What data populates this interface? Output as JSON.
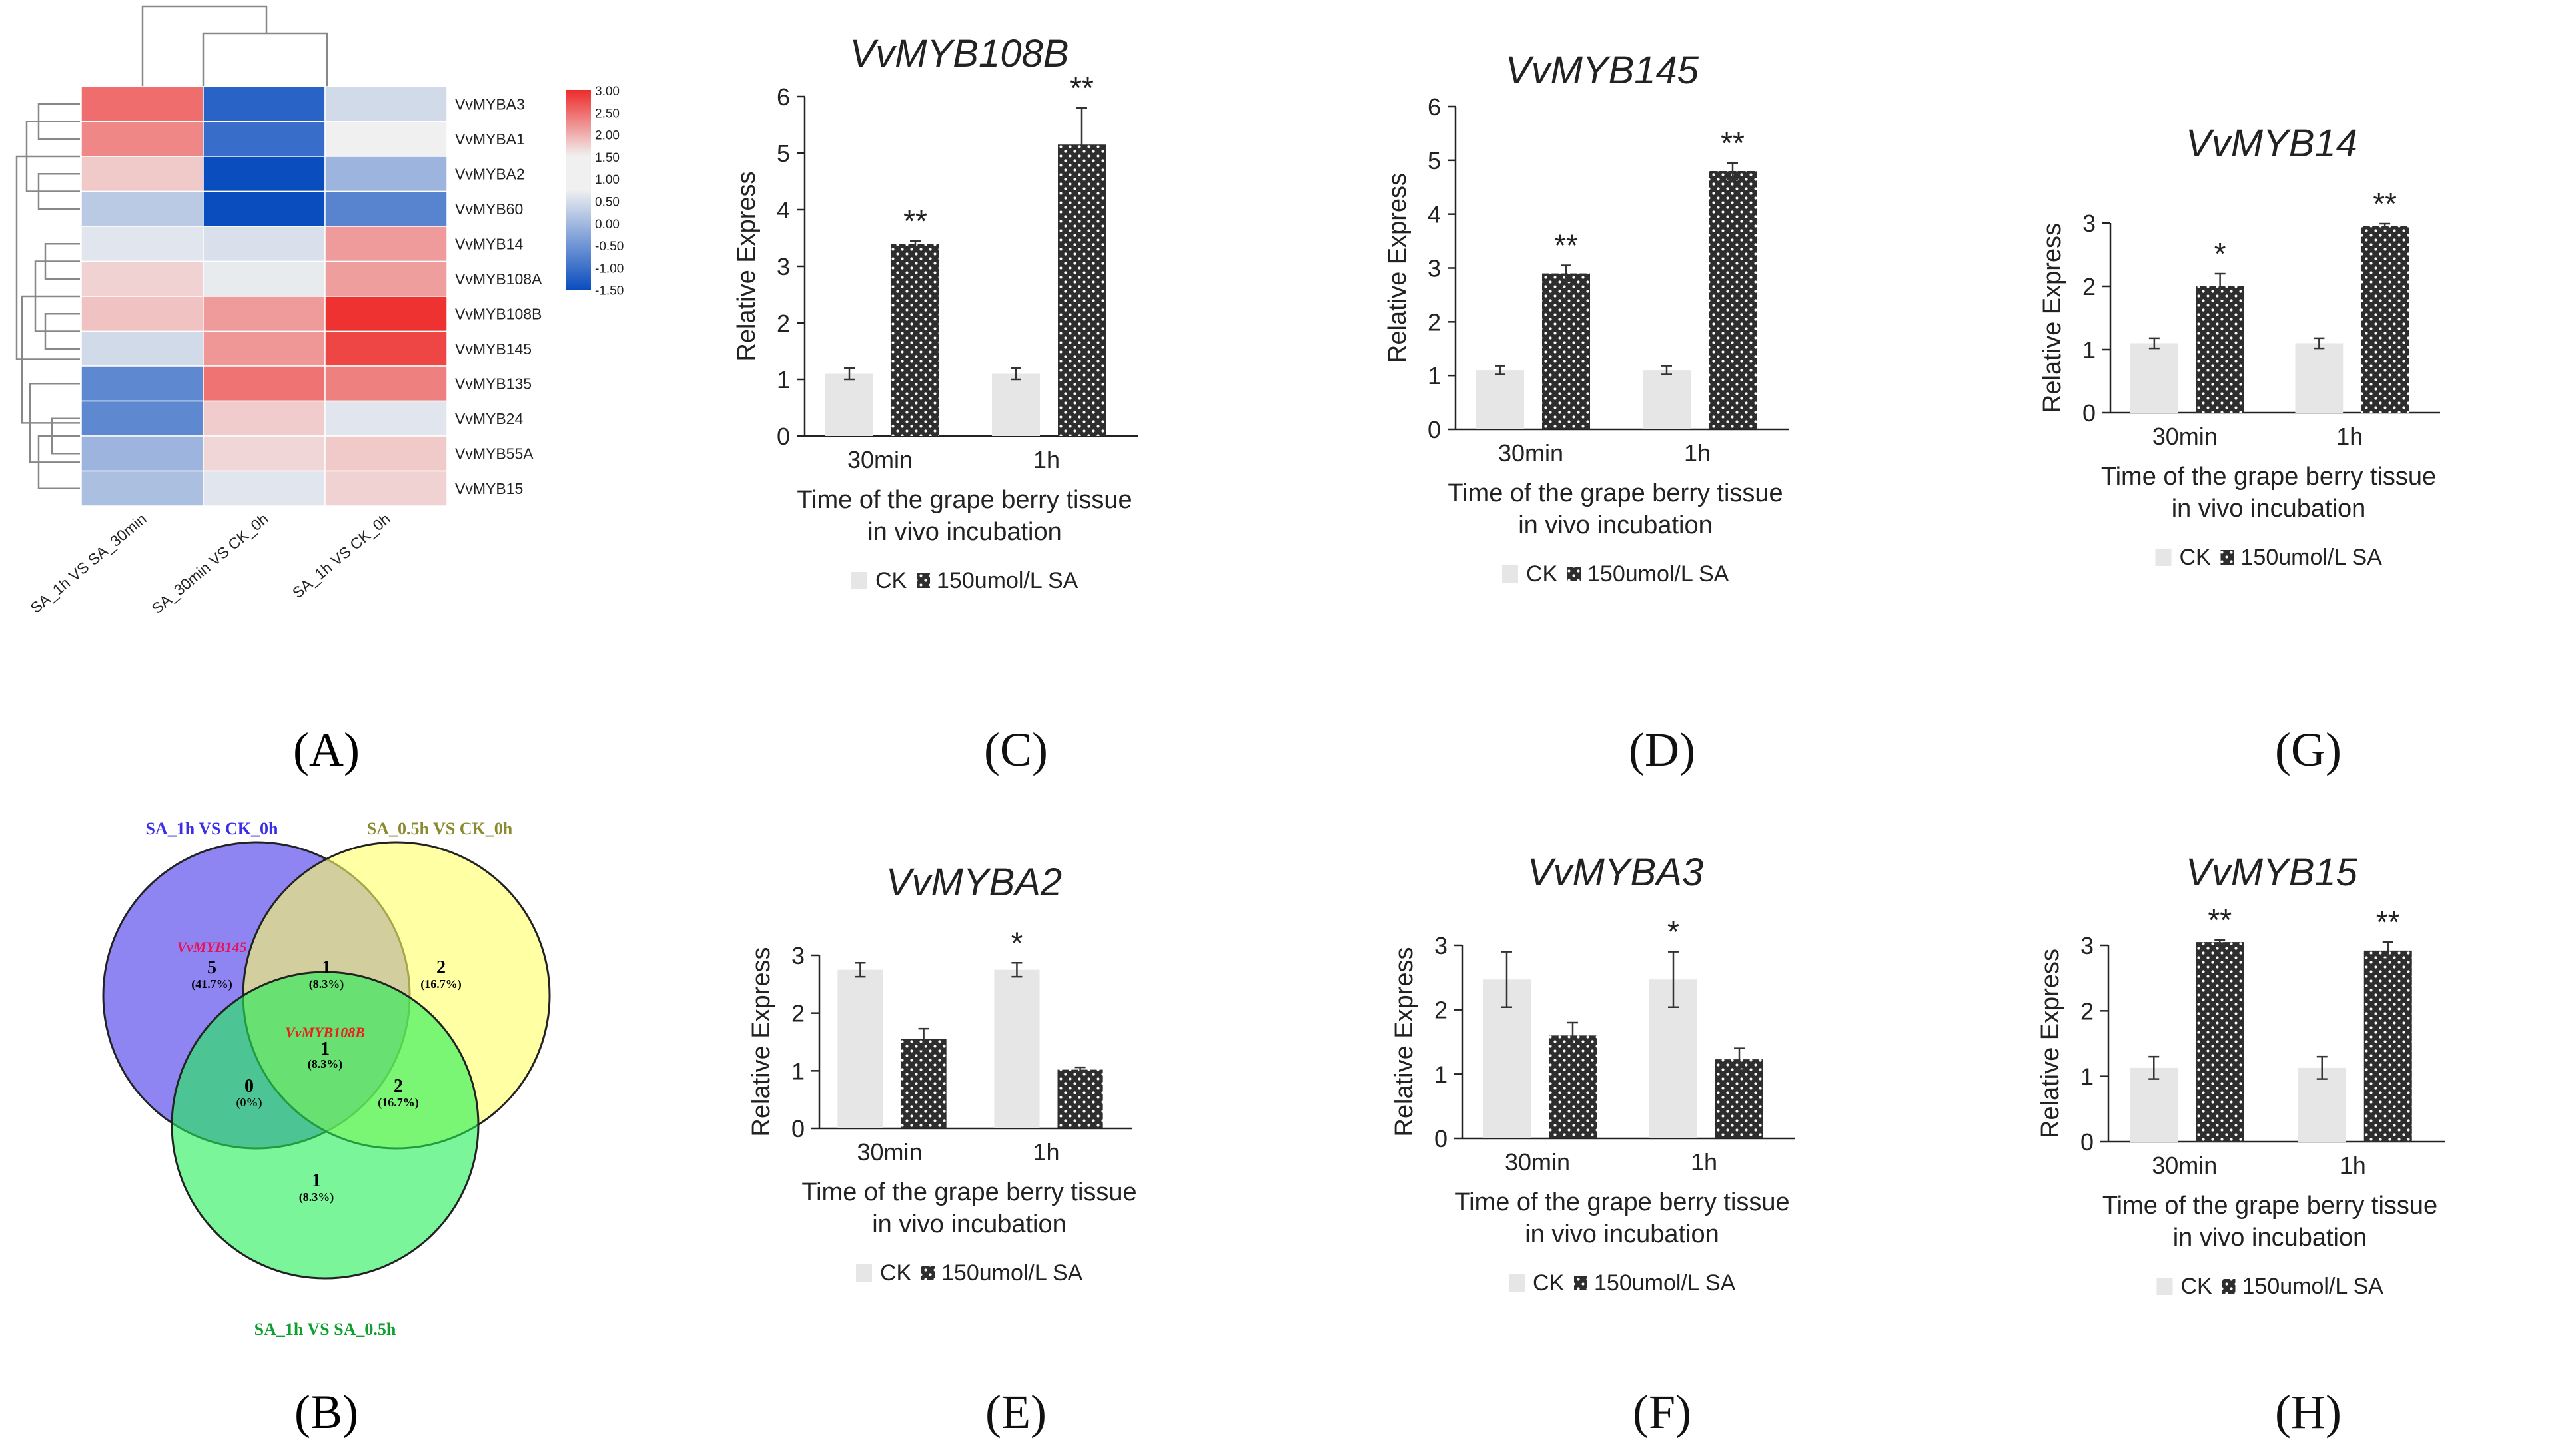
{
  "chart_data": [
    {
      "id": "A",
      "type": "heatmap",
      "panel_label": "(A)",
      "rows": [
        "VvMYBA3",
        "VvMYBA1",
        "VvMYBA2",
        "VvMYB60",
        "VvMYB14",
        "VvMYB108A",
        "VvMYB108B",
        "VvMYB145",
        "VvMYB135",
        "VvMYB24",
        "VvMYB55A",
        "VvMYB15"
      ],
      "columns": [
        "SA_1h VS SA_30min",
        "SA_30min VS CK_0h",
        "SA_1h VS CK_0h"
      ],
      "values": [
        [
          2.0,
          -1.3,
          -0.2
        ],
        [
          1.6,
          -1.2,
          0.0
        ],
        [
          0.6,
          -1.5,
          -0.55
        ],
        [
          -0.35,
          -1.5,
          -1.0
        ],
        [
          -0.1,
          -0.15,
          1.3
        ],
        [
          0.45,
          -0.05,
          1.25
        ],
        [
          0.7,
          1.3,
          2.9
        ],
        [
          -0.2,
          1.35,
          2.6
        ],
        [
          -0.95,
          1.9,
          1.7
        ],
        [
          -0.95,
          0.55,
          -0.1
        ],
        [
          -0.55,
          0.4,
          0.6
        ],
        [
          -0.45,
          -0.1,
          0.45
        ]
      ],
      "scale": {
        "min": -1.5,
        "max": 3.0,
        "ticks": [
          "3.00",
          "2.50",
          "2.00",
          "1.50",
          "1.00",
          "0.50",
          "0.00",
          "-0.50",
          "-1.00",
          "-1.50"
        ],
        "low_color": "#0a4dbf",
        "mid_color": "#f0f0f0",
        "high_color": "#ee2b2b"
      }
    },
    {
      "id": "B",
      "type": "venn",
      "panel_label": "(B)",
      "sets": [
        {
          "name": "SA_1h VS CK_0h",
          "color": "#7b70f0",
          "label_color": "#3b2ee8"
        },
        {
          "name": "SA_0.5h VS CK_0h",
          "color": "#ffff66",
          "label_color": "#8a8a30"
        },
        {
          "name": "SA_1h VS SA_0.5h",
          "color": "#22ee55",
          "label_color": "#10a030"
        }
      ],
      "regions": [
        {
          "region": "only_1",
          "count": "5",
          "pct": "(41.7%)",
          "gene": "VvMYB145"
        },
        {
          "region": "1_2",
          "count": "1",
          "pct": "(8.3%)"
        },
        {
          "region": "only_2",
          "count": "2",
          "pct": "(16.7%)"
        },
        {
          "region": "1_2_3",
          "count": "1",
          "pct": "(8.3%)",
          "gene": "VvMYB108B"
        },
        {
          "region": "1_3",
          "count": "0",
          "pct": "(0%)"
        },
        {
          "region": "2_3",
          "count": "2",
          "pct": "(16.7%)"
        },
        {
          "region": "only_3",
          "count": "1",
          "pct": "(8.3%)"
        }
      ]
    },
    {
      "id": "C",
      "type": "bar",
      "panel_label": "(C)",
      "title": "VvMYB108B",
      "categories": [
        "30min",
        "1h"
      ],
      "series": [
        {
          "name": "CK",
          "values": [
            1.1,
            1.1
          ],
          "errors": [
            0.1,
            0.1
          ]
        },
        {
          "name": "150umol/L SA",
          "values": [
            3.4,
            5.15
          ],
          "errors": [
            0.05,
            0.65
          ]
        }
      ],
      "significance": [
        "**",
        "**"
      ],
      "ylim": [
        0,
        6
      ],
      "yticks": [
        0,
        1,
        2,
        3,
        4,
        5,
        6
      ],
      "ylabel": "Relative Express",
      "xlabel": [
        "Time of the grape berry tissue",
        "in vivo incubation"
      ],
      "legend": [
        "CK",
        "150umol/L SA"
      ]
    },
    {
      "id": "D",
      "type": "bar",
      "panel_label": "(D)",
      "title": "VvMYB145",
      "categories": [
        "30min",
        "1h"
      ],
      "series": [
        {
          "name": "CK",
          "values": [
            1.1,
            1.1
          ],
          "errors": [
            0.08,
            0.08
          ]
        },
        {
          "name": "150umol/L SA",
          "values": [
            2.9,
            4.8
          ],
          "errors": [
            0.15,
            0.15
          ]
        }
      ],
      "significance": [
        "**",
        "**"
      ],
      "ylim": [
        0,
        6
      ],
      "yticks": [
        0,
        1,
        2,
        3,
        4,
        5,
        6
      ],
      "ylabel": "Relative Express",
      "xlabel": [
        "Time of the grape berry tissue",
        "in vivo incubation"
      ],
      "legend": [
        "CK",
        "150umol/L SA"
      ]
    },
    {
      "id": "G",
      "type": "bar",
      "panel_label": "(G)",
      "title": "VvMYB14",
      "categories": [
        "30min",
        "1h"
      ],
      "series": [
        {
          "name": "CK",
          "values": [
            1.1,
            1.1
          ],
          "errors": [
            0.08,
            0.08
          ]
        },
        {
          "name": "150umol/L SA",
          "values": [
            2.0,
            2.95
          ],
          "errors": [
            0.2,
            0.04
          ]
        }
      ],
      "significance": [
        "*",
        "**"
      ],
      "ylim": [
        0,
        3
      ],
      "yticks": [
        0,
        1,
        2,
        3
      ],
      "ylabel": "Relative Express",
      "xlabel": [
        "Time of the grape berry tissue",
        "in vivo incubation"
      ],
      "legend": [
        "CK",
        "150umol/L SA"
      ]
    },
    {
      "id": "E",
      "type": "bar",
      "panel_label": "(E)",
      "title": "VvMYBA2",
      "categories": [
        "30min",
        "1h"
      ],
      "series": [
        {
          "name": "CK",
          "values": [
            2.75,
            2.75
          ],
          "errors": [
            0.12,
            0.12
          ]
        },
        {
          "name": "150umol/L SA",
          "values": [
            1.55,
            1.02
          ],
          "errors": [
            0.18,
            0.04
          ]
        }
      ],
      "significance": [
        "",
        "*"
      ],
      "significance_series": "CK",
      "ylim": [
        0,
        3
      ],
      "yticks": [
        0,
        1,
        2,
        3
      ],
      "ylabel": "Relative Express",
      "xlabel": [
        "Time of the grape berry tissue",
        "in vivo incubation"
      ],
      "legend": [
        "CK",
        "150umol/L SA"
      ]
    },
    {
      "id": "F",
      "type": "bar",
      "panel_label": "(F)",
      "title": "VvMYBA3",
      "categories": [
        "30min",
        "1h"
      ],
      "series": [
        {
          "name": "CK",
          "values": [
            2.47,
            2.47
          ],
          "errors": [
            0.43,
            0.43
          ]
        },
        {
          "name": "150umol/L SA",
          "values": [
            1.6,
            1.23
          ],
          "errors": [
            0.2,
            0.17
          ]
        }
      ],
      "significance": [
        "",
        "*"
      ],
      "significance_series": "CK",
      "ylim": [
        0,
        3
      ],
      "yticks": [
        0,
        1,
        2,
        3
      ],
      "ylabel": "Relative Express",
      "xlabel": [
        "Time of the grape berry tissue",
        "in vivo incubation"
      ],
      "legend": [
        "CK",
        "150umol/L SA"
      ]
    },
    {
      "id": "H",
      "type": "bar",
      "panel_label": "(H)",
      "title": "VvMYB15",
      "categories": [
        "30min",
        "1h"
      ],
      "series": [
        {
          "name": "CK",
          "values": [
            1.13,
            1.13
          ],
          "errors": [
            0.17,
            0.17
          ]
        },
        {
          "name": "150umol/L SA",
          "values": [
            3.05,
            2.92
          ],
          "errors": [
            0.03,
            0.13
          ]
        }
      ],
      "significance": [
        "**",
        "**"
      ],
      "ylim": [
        0,
        3
      ],
      "yticks": [
        0,
        1,
        2,
        3
      ],
      "ylabel": "Relative Express",
      "xlabel": [
        "Time of the grape berry tissue",
        "in vivo incubation"
      ],
      "legend": [
        "CK",
        "150umol/L SA"
      ]
    }
  ]
}
